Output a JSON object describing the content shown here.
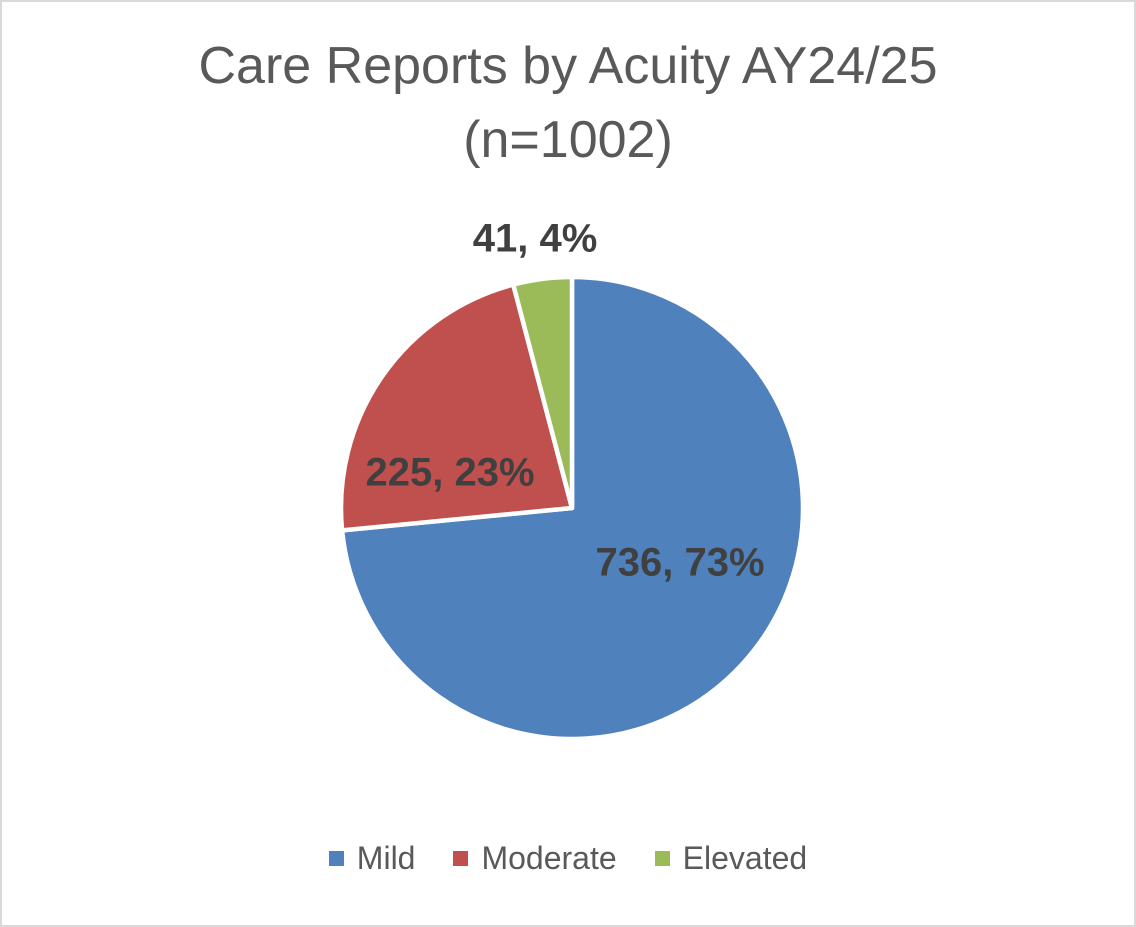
{
  "frame": {
    "background": "#ffffff",
    "border_color": "#d9d9d9"
  },
  "chart_data": {
    "type": "pie",
    "title": "Care Reports by Acuity AY24/25",
    "subtitle": "(n=1002)",
    "total": 1002,
    "start_angle_deg": 0,
    "direction": "clockwise",
    "legend_position": "bottom",
    "title_color": "#595959",
    "data_label_color": "#404040",
    "slice_gap_color": "#ffffff",
    "slices": [
      {
        "label": "Mild",
        "value": 736,
        "pct_shown": "73%",
        "data_label": "736, 73%",
        "color": "#4F81BD"
      },
      {
        "label": "Moderate",
        "value": 225,
        "pct_shown": "23%",
        "data_label": "225, 23%",
        "color": "#C0504D"
      },
      {
        "label": "Elevated",
        "value": 41,
        "pct_shown": "4%",
        "data_label": "41, 4%",
        "color": "#9BBB59"
      }
    ]
  }
}
